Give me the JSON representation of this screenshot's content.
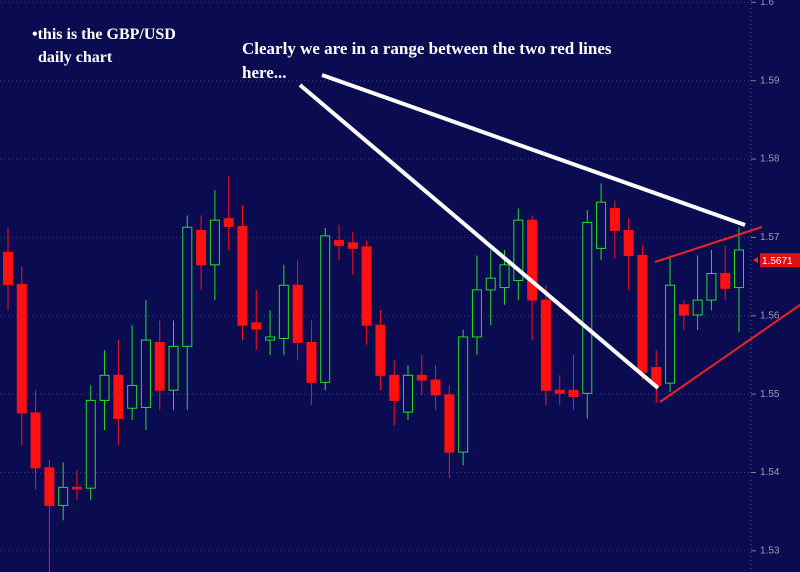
{
  "chart_data": {
    "type": "candlestick",
    "notes": [
      "•this is the GBP/USD",
      "daily chart"
    ],
    "comment": [
      "Clearly we are in a range between the two red lines",
      "here..."
    ],
    "open": [
      1.5681,
      1.564,
      1.5476,
      1.5406,
      1.5358,
      1.5381,
      1.538,
      1.5492,
      1.5524,
      1.5482,
      1.5483,
      1.5566,
      1.5505,
      1.5561,
      1.5709,
      1.5665,
      1.5724,
      1.5714,
      1.5591,
      1.5569,
      1.5571,
      1.5639,
      1.5566,
      1.5515,
      1.5696,
      1.5693,
      1.5688,
      1.5588,
      1.5524,
      1.5477,
      1.5524,
      1.5518,
      1.5499,
      1.5426,
      1.5573,
      1.5633,
      1.5636,
      1.5645,
      1.5722,
      1.562,
      1.5505,
      1.5505,
      1.5501,
      1.5686,
      1.5737,
      1.5709,
      1.5677,
      1.5534,
      1.5514,
      1.5614,
      1.5601,
      1.562,
      1.5654,
      1.5636
    ],
    "high": [
      1.5712,
      1.5663,
      1.5505,
      1.5416,
      1.5413,
      1.5403,
      1.5511,
      1.5556,
      1.5569,
      1.5588,
      1.562,
      1.5594,
      1.5594,
      1.5728,
      1.5728,
      1.576,
      1.5778,
      1.5741,
      1.5633,
      1.5607,
      1.5665,
      1.5671,
      1.5594,
      1.5712,
      1.5716,
      1.5707,
      1.5696,
      1.5607,
      1.5543,
      1.5537,
      1.555,
      1.5537,
      1.5511,
      1.5582,
      1.5677,
      1.5684,
      1.5684,
      1.5737,
      1.5728,
      1.5639,
      1.5524,
      1.555,
      1.5735,
      1.5769,
      1.5747,
      1.5724,
      1.569,
      1.5556,
      1.5677,
      1.562,
      1.5677,
      1.5684,
      1.569,
      1.5713
    ],
    "low": [
      1.5607,
      1.5435,
      1.5378,
      1.5273,
      1.5339,
      1.5365,
      1.5365,
      1.5454,
      1.5435,
      1.5467,
      1.5454,
      1.548,
      1.548,
      1.548,
      1.5633,
      1.562,
      1.5684,
      1.5569,
      1.5556,
      1.555,
      1.555,
      1.5543,
      1.5486,
      1.5505,
      1.5671,
      1.5652,
      1.5563,
      1.5505,
      1.546,
      1.5467,
      1.5499,
      1.548,
      1.5393,
      1.5409,
      1.555,
      1.5588,
      1.5614,
      1.562,
      1.5569,
      1.5486,
      1.5486,
      1.548,
      1.5469,
      1.5671,
      1.5673,
      1.5633,
      1.5518,
      1.5489,
      1.5503,
      1.5582,
      1.5582,
      1.5607,
      1.562,
      1.5579
    ],
    "close": [
      1.564,
      1.5476,
      1.5406,
      1.5358,
      1.5381,
      1.5379,
      1.5492,
      1.5524,
      1.5469,
      1.5511,
      1.5569,
      1.5505,
      1.5561,
      1.5713,
      1.5665,
      1.5722,
      1.5714,
      1.5588,
      1.5583,
      1.5573,
      1.5639,
      1.5566,
      1.5515,
      1.5702,
      1.569,
      1.5686,
      1.5588,
      1.5524,
      1.5492,
      1.5524,
      1.5518,
      1.5499,
      1.5426,
      1.5573,
      1.5633,
      1.5648,
      1.5665,
      1.5722,
      1.562,
      1.5505,
      1.5501,
      1.5497,
      1.5719,
      1.5745,
      1.5709,
      1.5677,
      1.5528,
      1.5511,
      1.5639,
      1.5601,
      1.562,
      1.5654,
      1.5635,
      1.5684
    ],
    "up_color": "#22dd22",
    "down_color": "#ff1111",
    "ylim": [
      1.5273,
      1.6003
    ],
    "yticks": [
      1.53,
      1.54,
      1.55,
      1.56,
      1.57,
      1.58,
      1.59,
      1.6
    ],
    "grid": true,
    "last_price": 1.5671
  }
}
